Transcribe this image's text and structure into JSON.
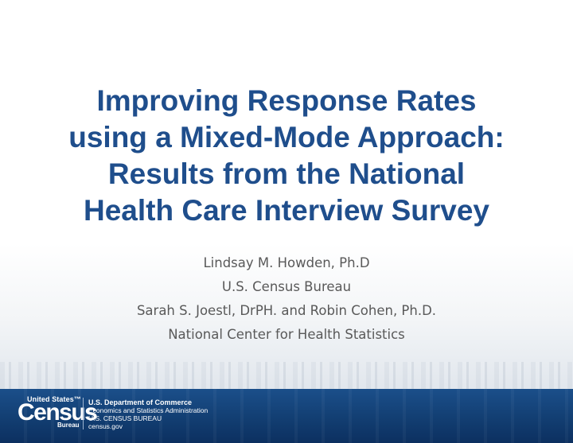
{
  "title_lines": [
    "Improving Response Rates",
    "using a Mixed-Mode Approach:",
    "Results from the National",
    "Health Care Interview Survey"
  ],
  "authors": [
    "Lindsay M. Howden, Ph.D",
    "U.S. Census Bureau",
    "Sarah S. Joestl, DrPH. and Robin Cohen, Ph.D.",
    "National Center for Health Statistics"
  ],
  "footer": {
    "logo": {
      "top": "United States™",
      "mark": "Census",
      "bottom": "Bureau"
    },
    "dept_lines": [
      "U.S. Department of Commerce",
      "Economics and Statistics Administration",
      "U.S. CENSUS BUREAU",
      "census.gov"
    ]
  },
  "colors": {
    "title": "#1f4e8c",
    "body_text": "#595959",
    "footer_bar": "#123e72"
  }
}
